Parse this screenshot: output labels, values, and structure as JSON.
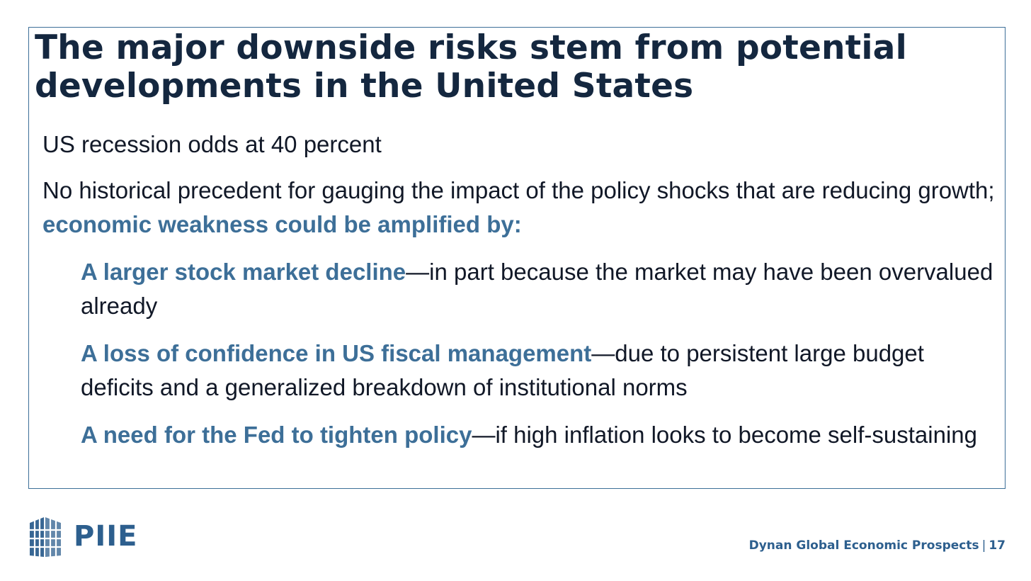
{
  "slide": {
    "title": "The major downside risks stem from potential developments in the United States",
    "point1": "US recession odds at 40 percent",
    "point2": {
      "text": "No historical precedent for gauging the impact of the policy shocks that are reducing growth; ",
      "emphasis": "economic weakness could be amplified by:"
    },
    "subpoints": [
      {
        "emphasis": "A larger stock market decline",
        "text": "—in part because the market may have been overvalued already"
      },
      {
        "emphasis": "A loss of confidence in US fiscal management",
        "text": "—due to persistent large budget deficits and a generalized breakdown of institutional norms"
      },
      {
        "emphasis": "A need for the Fed to tighten policy",
        "text": "—if high inflation looks to become self-sustaining"
      }
    ]
  },
  "footer": {
    "logo_text": "PIIE",
    "caption": "Dynan Global Economic Prospects",
    "separator": "|",
    "page_number": "17"
  },
  "colors": {
    "accent": "#3d6f98",
    "title": "#14273f",
    "body": "#111827",
    "brand": "#2d5f8e"
  }
}
